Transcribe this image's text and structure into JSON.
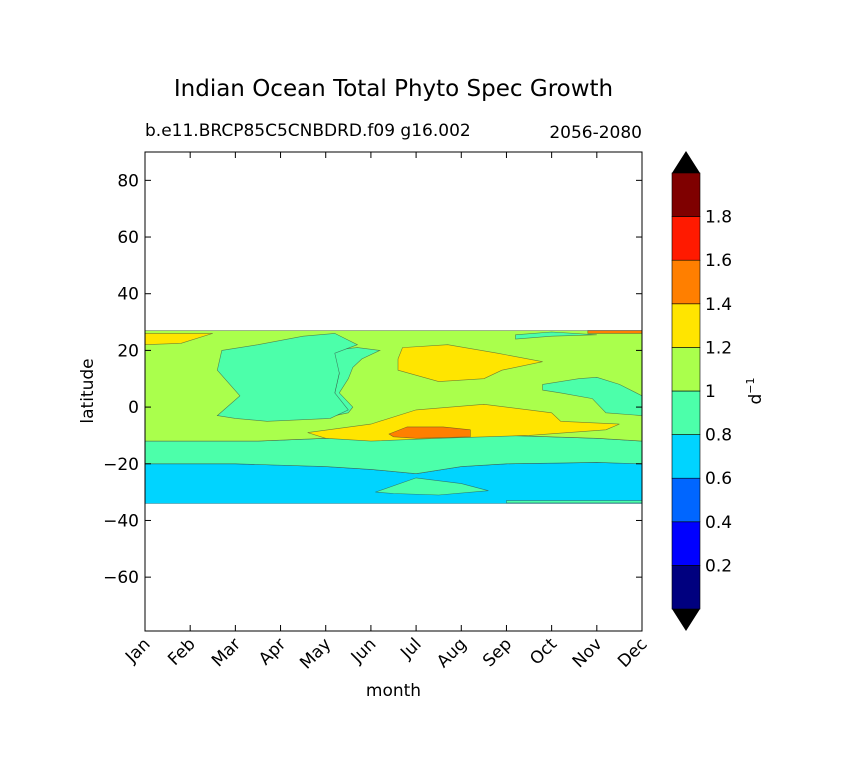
{
  "chart_data": {
    "type": "heatmap",
    "plot_kind": "filled-contour",
    "title": "Indian Ocean Total Phyto Spec Growth",
    "subtitle_left": "b.e11.BRCP85C5CNBDRD.f09 g16.002",
    "subtitle_right": "2056-2080",
    "xlabel": "month",
    "ylabel": "latitude",
    "x_categories": [
      "Jan",
      "Feb",
      "Mar",
      "Apr",
      "May",
      "Jun",
      "Jul",
      "Aug",
      "Sep",
      "Oct",
      "Nov",
      "Dec"
    ],
    "xlim": [
      1,
      12
    ],
    "ylim": [
      -79,
      90
    ],
    "yticks": [
      80,
      60,
      40,
      20,
      0,
      -20,
      -40,
      -60
    ],
    "ytick_labels": [
      "80",
      "60",
      "40",
      "20",
      "0",
      "−20",
      "−40",
      "−60"
    ],
    "data_lat_range": [
      -34,
      27
    ],
    "colorbar": {
      "label_base": "d",
      "label_exp": "−1",
      "levels": [
        0,
        0.2,
        0.4,
        0.6,
        0.8,
        1.0,
        1.2,
        1.4,
        1.6,
        1.8,
        2.0
      ],
      "tick_values": [
        0.2,
        0.4,
        0.6,
        0.8,
        1.0,
        1.2,
        1.4,
        1.6,
        1.8
      ],
      "tick_labels": [
        "0.2",
        "0.4",
        "0.6",
        "0.8",
        "1",
        "1.2",
        "1.4",
        "1.6",
        "1.8"
      ],
      "colors": [
        "#00007f",
        "#0000ff",
        "#0066ff",
        "#00d4ff",
        "#4cffaa",
        "#aaff4c",
        "#ffe500",
        "#ff7f00",
        "#ff1a00",
        "#7f0000"
      ],
      "extend": "both",
      "under_color": "#000000",
      "over_color": "#000000"
    },
    "regions": [
      {
        "name": "band-0.6-0.8",
        "value": 0.7,
        "level_index": 2,
        "points": [
          [
            1,
            -34
          ],
          [
            12,
            -34
          ],
          [
            12,
            -20
          ],
          [
            11,
            -19.5
          ],
          [
            9,
            -20
          ],
          [
            8,
            -21
          ],
          [
            7,
            -23.5
          ],
          [
            6,
            -22
          ],
          [
            5,
            -21
          ],
          [
            3,
            -20
          ],
          [
            1,
            -20
          ]
        ]
      },
      {
        "name": "band-0.8-1.0-south",
        "value": 0.9,
        "level_index": 3,
        "points": [
          [
            1,
            -20
          ],
          [
            3,
            -20
          ],
          [
            5,
            -21
          ],
          [
            6,
            -22
          ],
          [
            7,
            -23.5
          ],
          [
            8,
            -21
          ],
          [
            9,
            -20
          ],
          [
            11,
            -19.5
          ],
          [
            12,
            -20
          ],
          [
            12,
            -12
          ],
          [
            11,
            -11
          ],
          [
            9,
            -10
          ],
          [
            7,
            -10
          ],
          [
            5,
            -11
          ],
          [
            3.5,
            -12
          ],
          [
            2.5,
            -12
          ],
          [
            1,
            -12
          ]
        ]
      },
      {
        "name": "band-0.8-1.0-july-lobe",
        "value": 0.9,
        "level_index": 3,
        "points": [
          [
            6.1,
            -30
          ],
          [
            7,
            -25
          ],
          [
            8,
            -27
          ],
          [
            8.6,
            -29.5
          ],
          [
            7.5,
            -31
          ],
          [
            6.5,
            -30.5
          ]
        ]
      },
      {
        "name": "band-0.8-1.0-sliver",
        "value": 0.9,
        "level_index": 3,
        "points": [
          [
            9,
            -33
          ],
          [
            12,
            -33
          ],
          [
            12,
            -33.8
          ],
          [
            9,
            -33.8
          ]
        ]
      },
      {
        "name": "band-1.0-1.2-main",
        "value": 1.1,
        "level_index": 4,
        "points": [
          [
            1,
            -12
          ],
          [
            2.5,
            -12
          ],
          [
            3.5,
            -12
          ],
          [
            5,
            -11
          ],
          [
            7,
            -10
          ],
          [
            9,
            -10
          ],
          [
            11,
            -11
          ],
          [
            12,
            -12
          ],
          [
            12,
            27
          ],
          [
            1,
            27
          ]
        ]
      },
      {
        "name": "band-0.8-1.0-north",
        "value": 0.9,
        "level_index": 3,
        "points": [
          [
            2.6,
            -3
          ],
          [
            3.7,
            -4
          ],
          [
            4.6,
            -4
          ],
          [
            5.2,
            -2
          ],
          [
            5.2,
            5
          ],
          [
            5.3,
            12
          ],
          [
            5.1,
            20
          ],
          [
            5.7,
            21
          ],
          [
            6.2,
            20
          ],
          [
            5.8,
            17
          ],
          [
            5.6,
            14
          ],
          [
            5.5,
            10
          ],
          [
            5.3,
            5
          ],
          [
            5.6,
            0
          ],
          [
            5.5,
            -2
          ],
          [
            4.9,
            -4
          ],
          [
            3.7,
            -4
          ],
          [
            3.3,
            -3
          ],
          [
            2.6,
            -3
          ]
        ]
      },
      {
        "name": "band-0.8-1.0-north-core",
        "value": 0.9,
        "level_index": 3,
        "points": [
          [
            2.6,
            -3
          ],
          [
            3.1,
            4
          ],
          [
            2.6,
            13
          ],
          [
            2.7,
            20
          ],
          [
            3.5,
            22
          ],
          [
            4.5,
            25
          ],
          [
            5.2,
            26
          ],
          [
            5.7,
            22
          ],
          [
            5.2,
            19
          ],
          [
            5.3,
            12
          ],
          [
            5.2,
            5
          ],
          [
            5.5,
            -1
          ],
          [
            5.1,
            -4
          ],
          [
            3.7,
            -5
          ],
          [
            3,
            -4
          ]
        ]
      },
      {
        "name": "band-0.8-1.0-east",
        "value": 0.9,
        "level_index": 3,
        "points": [
          [
            9.8,
            8
          ],
          [
            10.6,
            10
          ],
          [
            11,
            10.5
          ],
          [
            11.5,
            8
          ],
          [
            12,
            4
          ],
          [
            12,
            -3
          ],
          [
            11.2,
            -2
          ],
          [
            10.9,
            3
          ],
          [
            10.2,
            5
          ],
          [
            9.8,
            6
          ]
        ]
      },
      {
        "name": "band-0.8-1.0-ne-sliver",
        "value": 0.9,
        "level_index": 3,
        "points": [
          [
            9.2,
            24
          ],
          [
            10,
            25
          ],
          [
            11,
            25.5
          ],
          [
            10,
            26.5
          ],
          [
            9.2,
            25.5
          ]
        ]
      },
      {
        "name": "band-1.2-1.4-west-strip",
        "value": 1.3,
        "level_index": 5,
        "points": [
          [
            1,
            22
          ],
          [
            1.8,
            22.5
          ],
          [
            2.5,
            26
          ],
          [
            1,
            26
          ]
        ]
      },
      {
        "name": "band-1.2-1.4-north",
        "value": 1.3,
        "level_index": 5,
        "points": [
          [
            6.6,
            13
          ],
          [
            7.5,
            9
          ],
          [
            8.5,
            10
          ],
          [
            8.9,
            13
          ],
          [
            9.8,
            16
          ],
          [
            8.8,
            19
          ],
          [
            7.7,
            22
          ],
          [
            6.7,
            21
          ],
          [
            6.6,
            17
          ]
        ]
      },
      {
        "name": "band-1.2-1.4-south",
        "value": 1.2,
        "level_index": 5,
        "points": [
          [
            4.6,
            -9
          ],
          [
            6,
            -6
          ],
          [
            7,
            -1
          ],
          [
            8.5,
            1
          ],
          [
            9.5,
            -1
          ],
          [
            10,
            -2
          ],
          [
            10.2,
            -5
          ],
          [
            11.5,
            -6
          ],
          [
            11.2,
            -8
          ],
          [
            9.5,
            -10
          ],
          [
            7.5,
            -11
          ],
          [
            6,
            -12
          ],
          [
            5,
            -11
          ]
        ]
      },
      {
        "name": "band-1.4-1.6-core",
        "value": 1.5,
        "level_index": 6,
        "points": [
          [
            6.4,
            -9.5
          ],
          [
            6.8,
            -7
          ],
          [
            7.6,
            -7
          ],
          [
            8.2,
            -8
          ],
          [
            8.2,
            -10.5
          ],
          [
            7,
            -11
          ],
          [
            6.5,
            -10.5
          ]
        ]
      },
      {
        "name": "band-1.4-1.6-ne-sliver",
        "value": 1.5,
        "level_index": 6,
        "points": [
          [
            10.8,
            26
          ],
          [
            12,
            26
          ],
          [
            12,
            27
          ],
          [
            10.8,
            27
          ]
        ]
      }
    ]
  }
}
